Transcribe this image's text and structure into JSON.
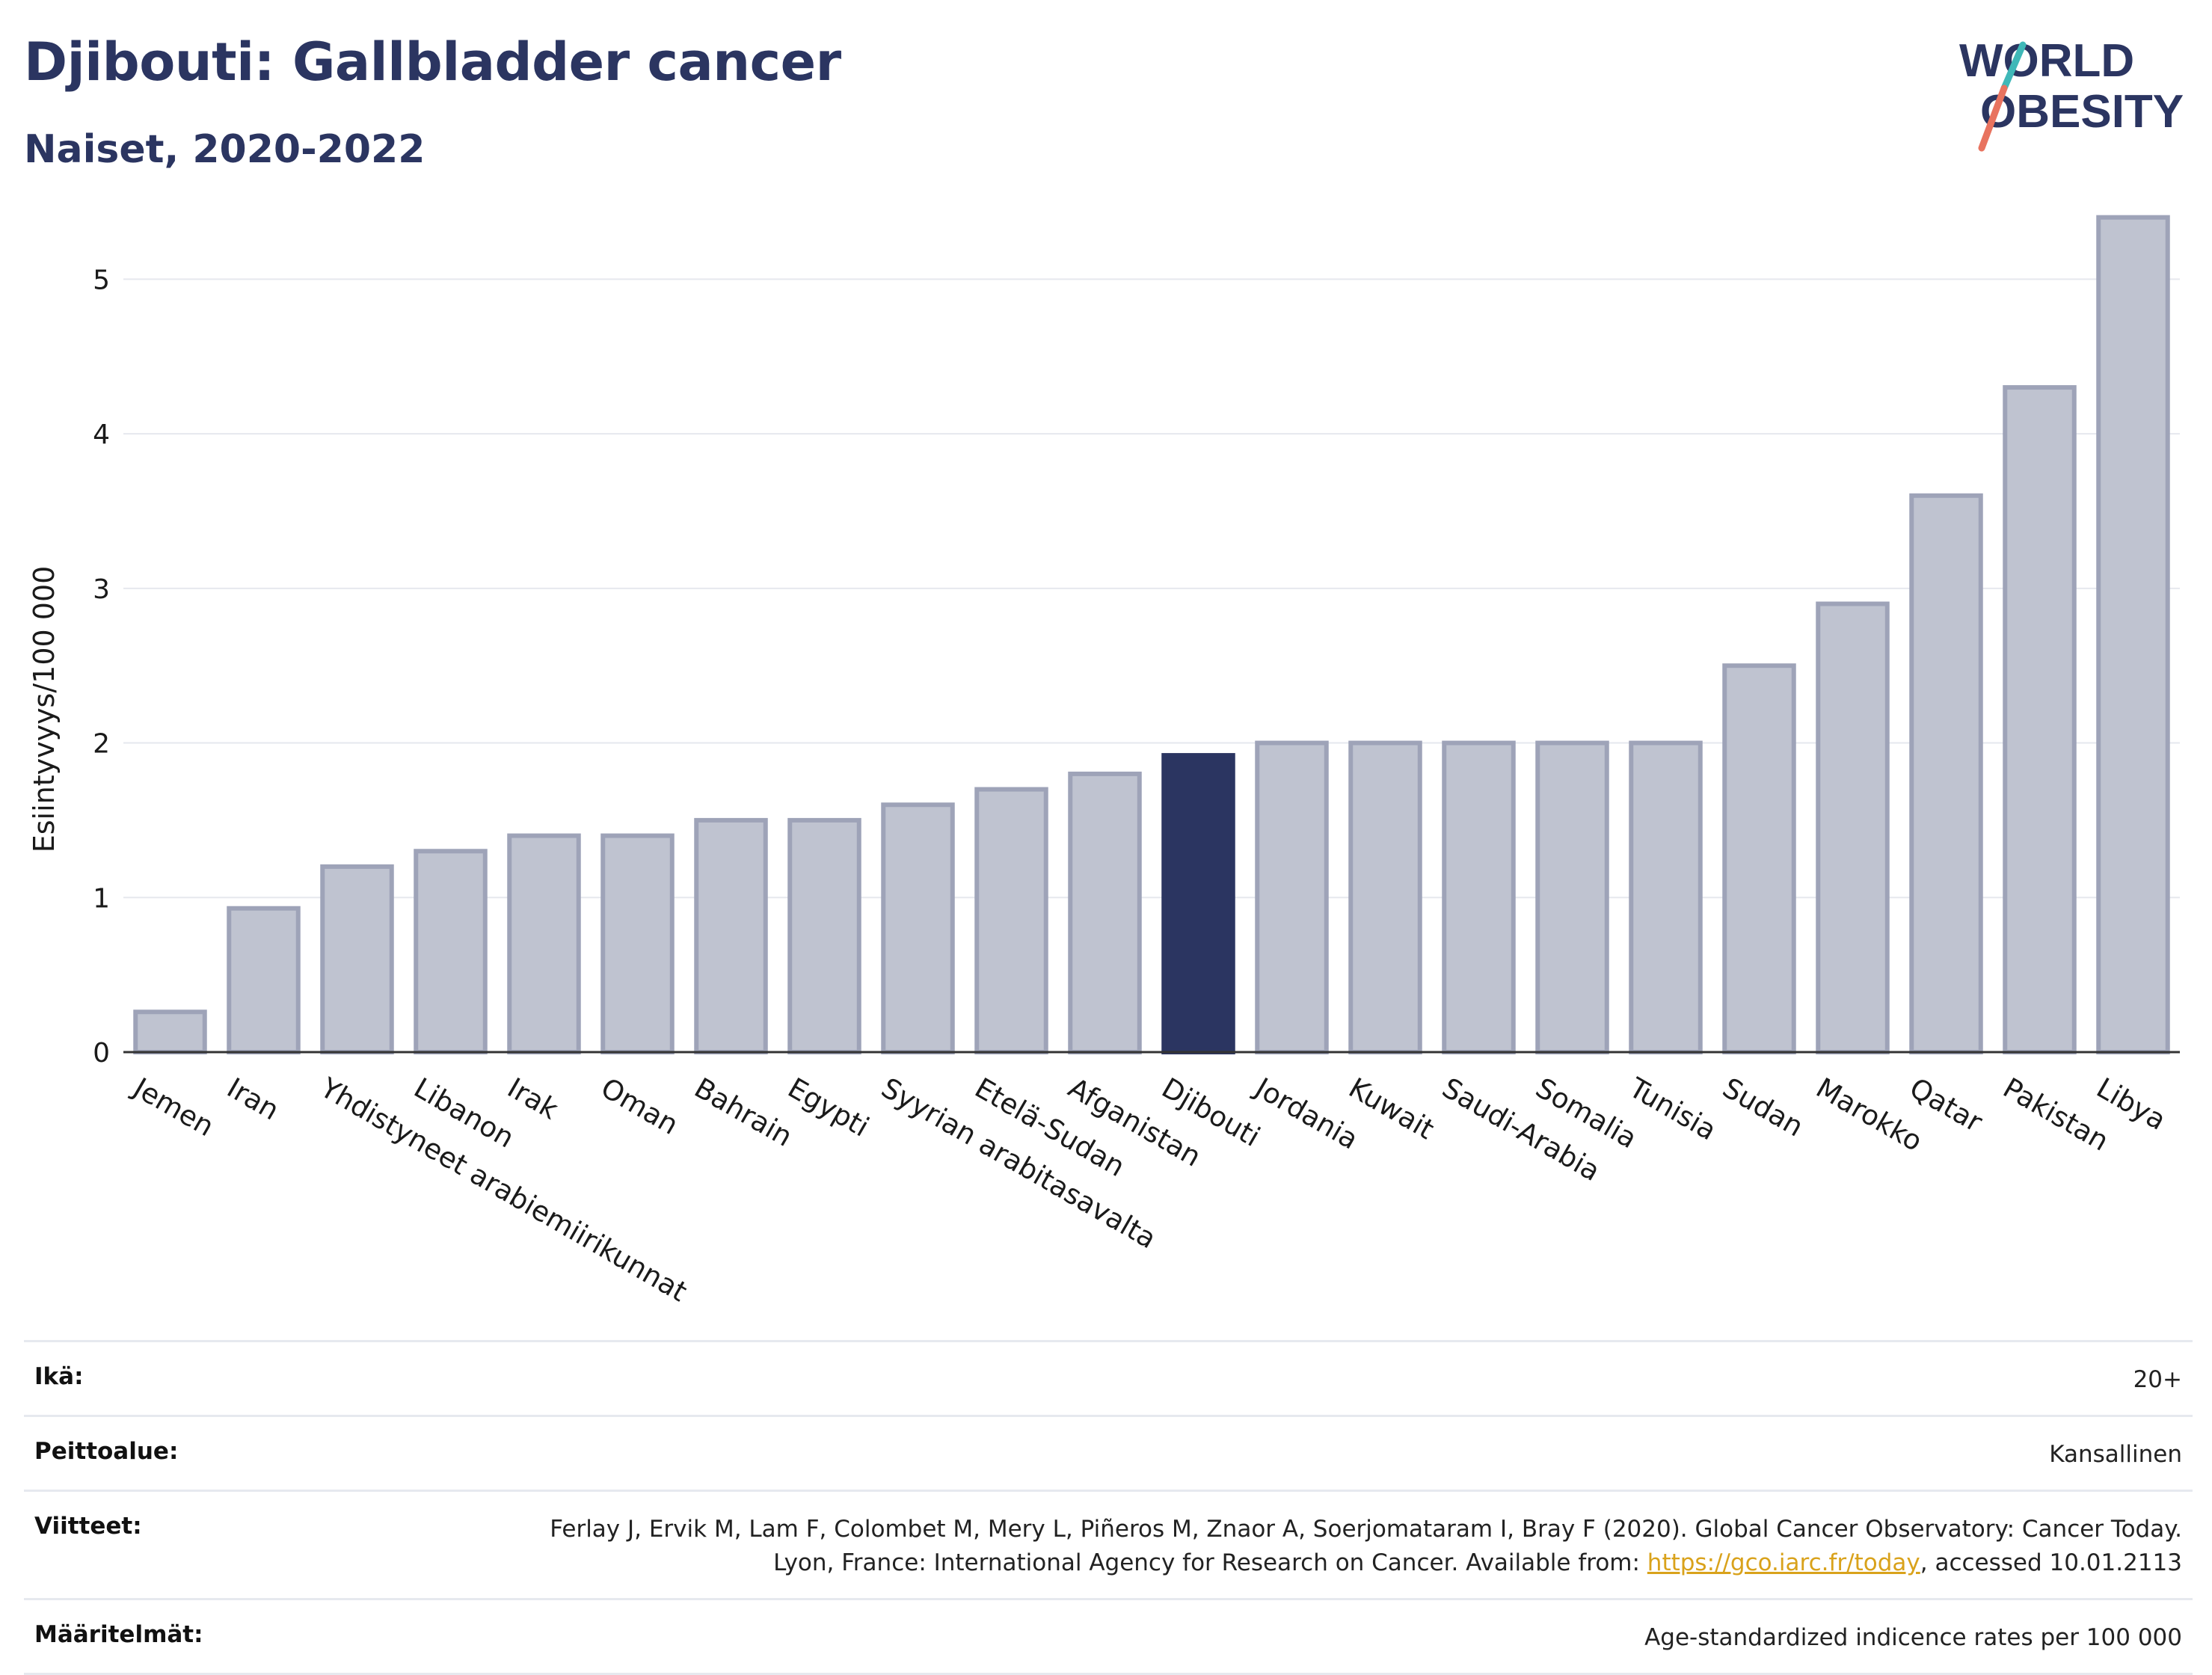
{
  "header": {
    "title": "Djibouti: Gallbladder cancer",
    "subtitle": "Naiset, 2020-2022",
    "logo_line1": "WORLD",
    "logo_line2": "OBESITY"
  },
  "colors": {
    "highlight": "#2b3561",
    "bar_fill": "#bfc3d0",
    "bar_stroke": "#9ea3b8",
    "logo_teal": "#3fb8b8",
    "logo_coral": "#e8735f",
    "grid": "#e6e8ee"
  },
  "chart_data": {
    "type": "bar",
    "ylabel": "Esiintyvyys/100 000",
    "ylim": [
      0,
      5.5
    ],
    "yticks": [
      0,
      1,
      2,
      3,
      4,
      5
    ],
    "grid": true,
    "highlight": "Djibouti",
    "categories": [
      "Jemen",
      "Iran",
      "Yhdistyneet arabiemiirikunnat",
      "Libanon",
      "Irak",
      "Oman",
      "Bahrain",
      "Egypti",
      "Syyrian arabitasavalta",
      "Etelä-Sudan",
      "Afganistan",
      "Djibouti",
      "Jordania",
      "Kuwait",
      "Saudi-Arabia",
      "Somalia",
      "Tunisia",
      "Sudan",
      "Marokko",
      "Qatar",
      "Pakistan",
      "Libya"
    ],
    "values": [
      0.26,
      0.93,
      1.2,
      1.3,
      1.4,
      1.4,
      1.5,
      1.5,
      1.6,
      1.7,
      1.8,
      1.92,
      2.0,
      2.0,
      2.0,
      2.0,
      2.0,
      2.5,
      2.9,
      3.6,
      4.3,
      5.4
    ]
  },
  "meta": {
    "age_label": "Ikä:",
    "age_value": "20+",
    "coverage_label": "Peittoalue:",
    "coverage_value": "Kansallinen",
    "refs_label": "Viitteet:",
    "refs_text_1": "Ferlay J, Ervik M, Lam F, Colombet M, Mery L, Piñeros M, Znaor A, Soerjomataram I, Bray F (2020). Global Cancer Observatory: Cancer Today. Lyon, France: International Agency for Research on Cancer. Available from: ",
    "refs_link": "https://gco.iarc.fr/today",
    "refs_text_2": ", accessed 10.01.2113",
    "defs_label": "Määritelmät:",
    "defs_value": "Age-standardized indicence rates per 100 000"
  }
}
